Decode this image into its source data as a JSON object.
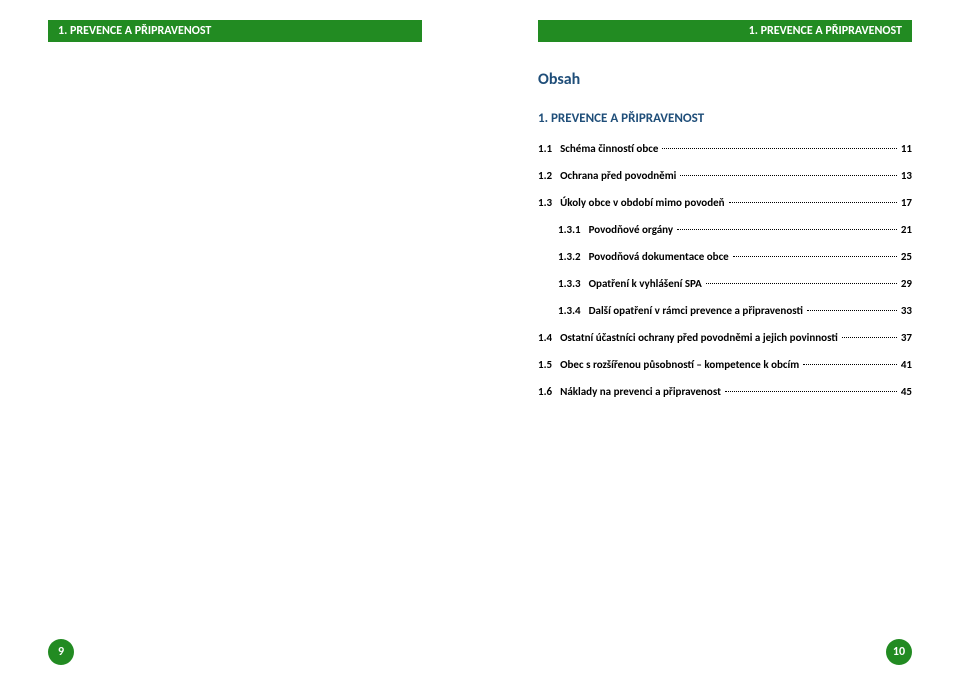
{
  "colors": {
    "header_bg": "#228b22",
    "header_text": "#ffffff",
    "page_number_bg": "#228b22",
    "page_number_text": "#ffffff",
    "title_color": "#1f4e79",
    "body_text": "#000000"
  },
  "header": {
    "left": "1.    PREVENCE A PŘIPRAVENOST",
    "right": "1.    PREVENCE A PŘIPRAVENOST"
  },
  "footer": {
    "left_page": "9",
    "right_page": "10"
  },
  "toc": {
    "title": "Obsah",
    "section_main": "1.    PREVENCE A PŘIPRAVENOST",
    "items": [
      {
        "num": "1.1",
        "label": "Schéma činností obce",
        "page": "11",
        "sub": false
      },
      {
        "num": "1.2",
        "label": "Ochrana před povodněmi",
        "page": "13",
        "sub": false
      },
      {
        "num": "1.3",
        "label": "Úkoly obce v období mimo povodeň",
        "page": "17",
        "sub": false
      },
      {
        "num": "1.3.1",
        "label": "Povodňové orgány",
        "page": "21",
        "sub": true
      },
      {
        "num": "1.3.2",
        "label": "Povodňová dokumentace obce",
        "page": "25",
        "sub": true
      },
      {
        "num": "1.3.3",
        "label": "Opatření k vyhlášení SPA",
        "page": "29",
        "sub": true
      },
      {
        "num": "1.3.4",
        "label": "Další opatření v rámci prevence a připravenosti",
        "page": "33",
        "sub": true
      },
      {
        "num": "1.4",
        "label": "Ostatní účastníci ochrany před povodněmi  a jejich povinnosti",
        "page": "37",
        "sub": false
      },
      {
        "num": "1.5",
        "label": "Obec s rozšířenou působností – kompetence k obcím",
        "page": "41",
        "sub": false
      },
      {
        "num": "1.6",
        "label": "Náklady na prevenci a připravenost",
        "page": "45",
        "sub": false
      }
    ]
  }
}
